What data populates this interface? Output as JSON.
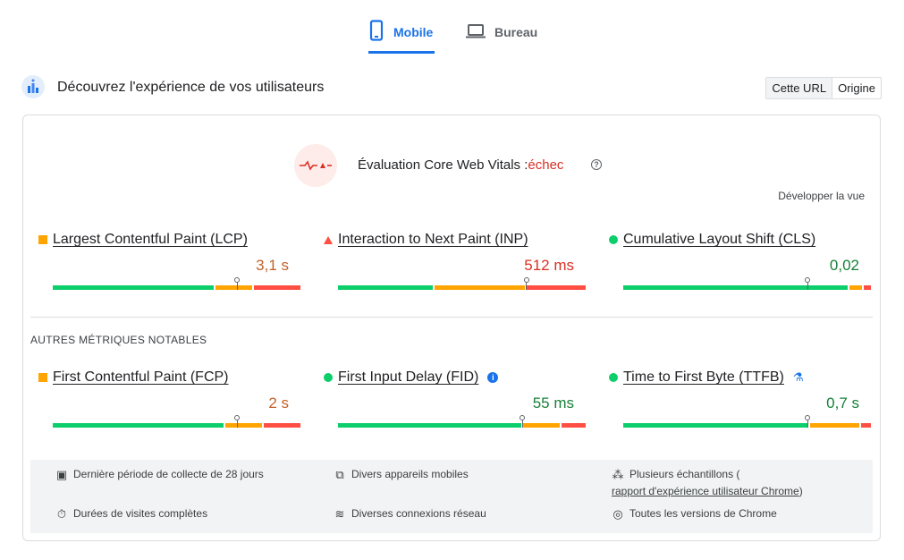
{
  "tabs": {
    "mobile": "Mobile",
    "desktop": "Bureau"
  },
  "section": {
    "title": "Découvrez l'expérience de vos utilisateurs",
    "toggle_url": "Cette URL",
    "toggle_origin": "Origine"
  },
  "assessment": {
    "title": "Évaluation Core Web Vitals :",
    "status": "échec",
    "expand": "Développer la vue"
  },
  "core_metrics": [
    {
      "name": "Largest Contentful Paint (LCP)",
      "value": "3,1 s",
      "rating": "average",
      "distribution": [
        0.66,
        0.15,
        0.19
      ],
      "marker": 0.745
    },
    {
      "name": "Interaction to Next Paint (INP)",
      "value": "512 ms",
      "rating": "poor",
      "distribution": [
        0.39,
        0.37,
        0.24
      ],
      "marker": 0.76
    },
    {
      "name": "Cumulative Layout Shift (CLS)",
      "value": "0,02",
      "rating": "good",
      "distribution": [
        0.92,
        0.05,
        0.03
      ],
      "marker": 0.745
    }
  ],
  "other_title": "AUTRES MÉTRIQUES NOTABLES",
  "other_metrics": [
    {
      "name": "First Contentful Paint (FCP)",
      "value": "2 s",
      "rating": "average",
      "distribution": [
        0.7,
        0.15,
        0.15
      ],
      "marker": 0.745
    },
    {
      "name": "First Input Delay (FID)",
      "value": "55 ms",
      "rating": "good",
      "distribution": [
        0.75,
        0.15,
        0.1
      ],
      "marker": 0.745
    },
    {
      "name": "Time to First Byte (TTFB)",
      "value": "0,7 s",
      "rating": "good",
      "distribution": [
        0.76,
        0.2,
        0.04
      ],
      "marker": 0.745
    }
  ],
  "footer": {
    "period": "Dernière période de collecte de 28 jours",
    "devices": "Divers appareils mobiles",
    "samples_pre": "Plusieurs échantillons (",
    "samples_link": "rapport d'expérience utilisateur Chrome",
    "samples_post": ")",
    "visits": "Durées de visites complètes",
    "network": "Diverses connexions réseau",
    "chrome": "Toutes les versions de Chrome"
  },
  "colors": {
    "good": "#0cce6b",
    "average": "#ffa400",
    "poor": "#ff4e42",
    "accent": "#1a73e8"
  }
}
